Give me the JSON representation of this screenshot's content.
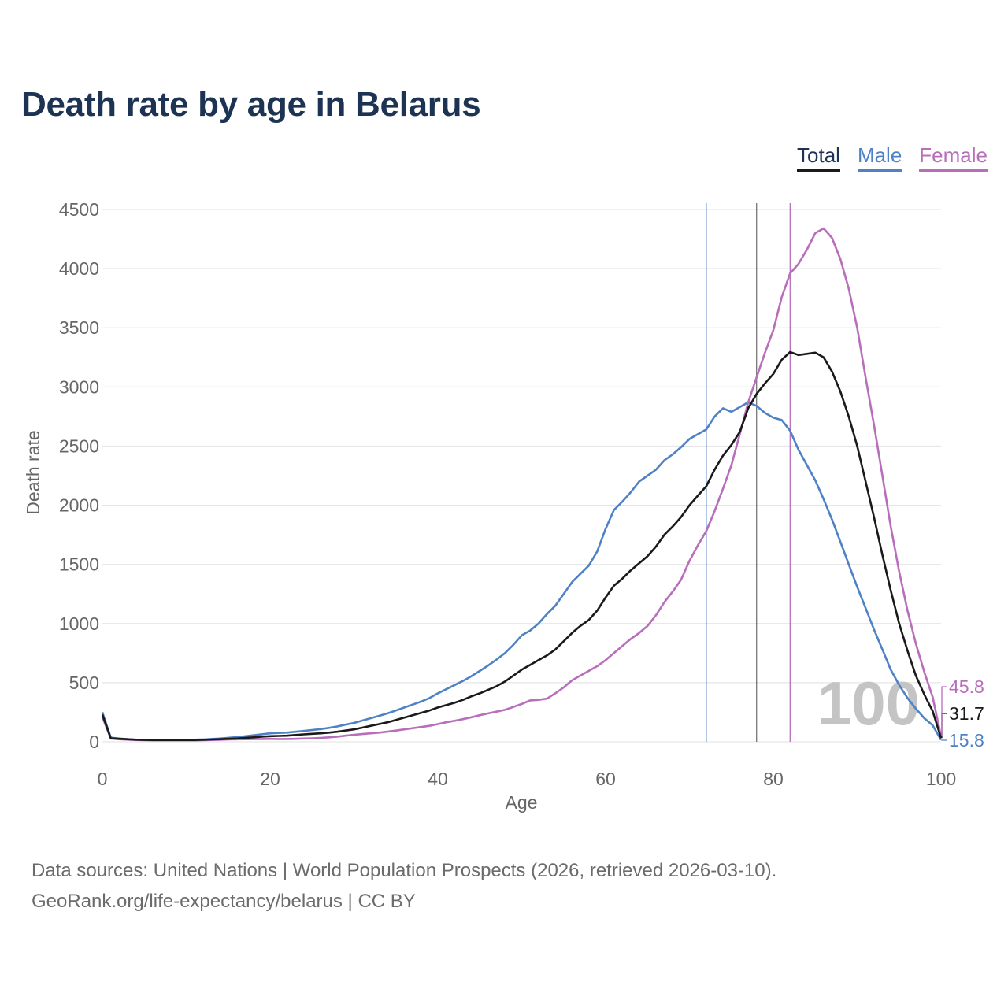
{
  "chart_data": {
    "type": "line",
    "title": "Death rate by age in Belarus",
    "xlabel": "Age",
    "ylabel": "Death rate",
    "xlim": [
      0,
      100
    ],
    "ylim": [
      0,
      4500
    ],
    "xticks": [
      0,
      20,
      40,
      60,
      80,
      100
    ],
    "yticks": [
      0,
      500,
      1000,
      1500,
      2000,
      2500,
      3000,
      3500,
      4000,
      4500
    ],
    "grid": true,
    "legend_position": "top-right",
    "watermark": "100",
    "series": [
      {
        "key": "total",
        "name": "Total",
        "color": "#1a1a1a",
        "end_label": "31.7",
        "reference_age": 78,
        "points": [
          [
            0,
            230
          ],
          [
            1,
            30
          ],
          [
            2,
            25
          ],
          [
            3,
            22
          ],
          [
            4,
            18
          ],
          [
            5,
            16
          ],
          [
            6,
            15
          ],
          [
            7,
            15
          ],
          [
            8,
            15
          ],
          [
            9,
            15
          ],
          [
            10,
            15
          ],
          [
            11,
            15
          ],
          [
            12,
            17
          ],
          [
            13,
            20
          ],
          [
            14,
            22
          ],
          [
            15,
            25
          ],
          [
            16,
            28
          ],
          [
            17,
            33
          ],
          [
            18,
            38
          ],
          [
            19,
            43
          ],
          [
            20,
            48
          ],
          [
            21,
            50
          ],
          [
            22,
            52
          ],
          [
            23,
            58
          ],
          [
            24,
            63
          ],
          [
            25,
            68
          ],
          [
            26,
            72
          ],
          [
            27,
            78
          ],
          [
            28,
            85
          ],
          [
            29,
            95
          ],
          [
            30,
            105
          ],
          [
            31,
            120
          ],
          [
            32,
            135
          ],
          [
            33,
            150
          ],
          [
            34,
            165
          ],
          [
            35,
            185
          ],
          [
            36,
            205
          ],
          [
            37,
            225
          ],
          [
            38,
            245
          ],
          [
            39,
            265
          ],
          [
            40,
            290
          ],
          [
            41,
            310
          ],
          [
            42,
            330
          ],
          [
            43,
            355
          ],
          [
            44,
            385
          ],
          [
            45,
            410
          ],
          [
            46,
            440
          ],
          [
            47,
            470
          ],
          [
            48,
            510
          ],
          [
            49,
            560
          ],
          [
            50,
            610
          ],
          [
            51,
            650
          ],
          [
            52,
            690
          ],
          [
            53,
            730
          ],
          [
            54,
            780
          ],
          [
            55,
            850
          ],
          [
            56,
            920
          ],
          [
            57,
            980
          ],
          [
            58,
            1030
          ],
          [
            59,
            1110
          ],
          [
            60,
            1220
          ],
          [
            61,
            1320
          ],
          [
            62,
            1380
          ],
          [
            63,
            1450
          ],
          [
            64,
            1510
          ],
          [
            65,
            1570
          ],
          [
            66,
            1650
          ],
          [
            67,
            1750
          ],
          [
            68,
            1820
          ],
          [
            69,
            1900
          ],
          [
            70,
            2000
          ],
          [
            71,
            2080
          ],
          [
            72,
            2160
          ],
          [
            73,
            2300
          ],
          [
            74,
            2420
          ],
          [
            75,
            2510
          ],
          [
            76,
            2620
          ],
          [
            77,
            2820
          ],
          [
            78,
            2940
          ],
          [
            79,
            3030
          ],
          [
            80,
            3110
          ],
          [
            81,
            3230
          ],
          [
            82,
            3295
          ],
          [
            83,
            3270
          ],
          [
            84,
            3280
          ],
          [
            85,
            3290
          ],
          [
            86,
            3250
          ],
          [
            87,
            3130
          ],
          [
            88,
            2960
          ],
          [
            89,
            2750
          ],
          [
            90,
            2500
          ],
          [
            91,
            2200
          ],
          [
            92,
            1900
          ],
          [
            93,
            1580
          ],
          [
            94,
            1280
          ],
          [
            95,
            1000
          ],
          [
            96,
            770
          ],
          [
            97,
            560
          ],
          [
            98,
            400
          ],
          [
            99,
            260
          ],
          [
            100,
            31.7
          ]
        ]
      },
      {
        "key": "male",
        "name": "Male",
        "color": "#4f81c5",
        "end_label": "15.8",
        "reference_age": 72,
        "points": [
          [
            0,
            250
          ],
          [
            1,
            35
          ],
          [
            2,
            28
          ],
          [
            3,
            22
          ],
          [
            4,
            18
          ],
          [
            5,
            16
          ],
          [
            6,
            15
          ],
          [
            7,
            16
          ],
          [
            8,
            17
          ],
          [
            9,
            18
          ],
          [
            10,
            18
          ],
          [
            11,
            18
          ],
          [
            12,
            20
          ],
          [
            13,
            24
          ],
          [
            14,
            28
          ],
          [
            15,
            34
          ],
          [
            16,
            40
          ],
          [
            17,
            47
          ],
          [
            18,
            55
          ],
          [
            19,
            64
          ],
          [
            20,
            72
          ],
          [
            21,
            75
          ],
          [
            22,
            78
          ],
          [
            23,
            85
          ],
          [
            24,
            92
          ],
          [
            25,
            100
          ],
          [
            26,
            108
          ],
          [
            27,
            118
          ],
          [
            28,
            130
          ],
          [
            29,
            145
          ],
          [
            30,
            160
          ],
          [
            31,
            180
          ],
          [
            32,
            200
          ],
          [
            33,
            220
          ],
          [
            34,
            240
          ],
          [
            35,
            265
          ],
          [
            36,
            290
          ],
          [
            37,
            315
          ],
          [
            38,
            340
          ],
          [
            39,
            370
          ],
          [
            40,
            410
          ],
          [
            41,
            445
          ],
          [
            42,
            480
          ],
          [
            43,
            515
          ],
          [
            44,
            555
          ],
          [
            45,
            600
          ],
          [
            46,
            645
          ],
          [
            47,
            695
          ],
          [
            48,
            750
          ],
          [
            49,
            820
          ],
          [
            50,
            900
          ],
          [
            51,
            940
          ],
          [
            52,
            1000
          ],
          [
            53,
            1080
          ],
          [
            54,
            1150
          ],
          [
            55,
            1250
          ],
          [
            56,
            1350
          ],
          [
            57,
            1420
          ],
          [
            58,
            1490
          ],
          [
            59,
            1610
          ],
          [
            60,
            1800
          ],
          [
            61,
            1960
          ],
          [
            62,
            2030
          ],
          [
            63,
            2110
          ],
          [
            64,
            2200
          ],
          [
            65,
            2250
          ],
          [
            66,
            2300
          ],
          [
            67,
            2380
          ],
          [
            68,
            2430
          ],
          [
            69,
            2490
          ],
          [
            70,
            2560
          ],
          [
            71,
            2600
          ],
          [
            72,
            2640
          ],
          [
            73,
            2750
          ],
          [
            74,
            2820
          ],
          [
            75,
            2790
          ],
          [
            76,
            2830
          ],
          [
            77,
            2870
          ],
          [
            78,
            2840
          ],
          [
            79,
            2780
          ],
          [
            80,
            2740
          ],
          [
            81,
            2720
          ],
          [
            82,
            2630
          ],
          [
            83,
            2470
          ],
          [
            84,
            2340
          ],
          [
            85,
            2210
          ],
          [
            86,
            2050
          ],
          [
            87,
            1880
          ],
          [
            88,
            1690
          ],
          [
            89,
            1500
          ],
          [
            90,
            1310
          ],
          [
            91,
            1130
          ],
          [
            92,
            950
          ],
          [
            93,
            780
          ],
          [
            94,
            610
          ],
          [
            95,
            480
          ],
          [
            96,
            370
          ],
          [
            97,
            280
          ],
          [
            98,
            200
          ],
          [
            99,
            140
          ],
          [
            100,
            15.8
          ]
        ]
      },
      {
        "key": "female",
        "name": "Female",
        "color": "#b86ebb",
        "end_label": "45.8",
        "reference_age": 82,
        "points": [
          [
            0,
            210
          ],
          [
            1,
            28
          ],
          [
            2,
            22
          ],
          [
            3,
            18
          ],
          [
            4,
            15
          ],
          [
            5,
            13
          ],
          [
            6,
            12
          ],
          [
            7,
            12
          ],
          [
            8,
            12
          ],
          [
            9,
            12
          ],
          [
            10,
            12
          ],
          [
            11,
            12
          ],
          [
            12,
            13
          ],
          [
            13,
            15
          ],
          [
            14,
            17
          ],
          [
            15,
            20
          ],
          [
            16,
            21
          ],
          [
            17,
            22
          ],
          [
            18,
            23
          ],
          [
            19,
            24
          ],
          [
            20,
            25
          ],
          [
            21,
            24
          ],
          [
            22,
            24
          ],
          [
            23,
            25
          ],
          [
            24,
            28
          ],
          [
            25,
            30
          ],
          [
            26,
            33
          ],
          [
            27,
            38
          ],
          [
            28,
            44
          ],
          [
            29,
            52
          ],
          [
            30,
            60
          ],
          [
            31,
            66
          ],
          [
            32,
            72
          ],
          [
            33,
            78
          ],
          [
            34,
            86
          ],
          [
            35,
            95
          ],
          [
            36,
            105
          ],
          [
            37,
            115
          ],
          [
            38,
            125
          ],
          [
            39,
            135
          ],
          [
            40,
            150
          ],
          [
            41,
            165
          ],
          [
            42,
            178
          ],
          [
            43,
            192
          ],
          [
            44,
            208
          ],
          [
            45,
            225
          ],
          [
            46,
            240
          ],
          [
            47,
            255
          ],
          [
            48,
            270
          ],
          [
            49,
            295
          ],
          [
            50,
            320
          ],
          [
            51,
            350
          ],
          [
            52,
            355
          ],
          [
            53,
            365
          ],
          [
            54,
            410
          ],
          [
            55,
            460
          ],
          [
            56,
            520
          ],
          [
            57,
            560
          ],
          [
            58,
            600
          ],
          [
            59,
            640
          ],
          [
            60,
            690
          ],
          [
            61,
            750
          ],
          [
            62,
            810
          ],
          [
            63,
            870
          ],
          [
            64,
            920
          ],
          [
            65,
            980
          ],
          [
            66,
            1070
          ],
          [
            67,
            1180
          ],
          [
            68,
            1270
          ],
          [
            69,
            1370
          ],
          [
            70,
            1530
          ],
          [
            71,
            1660
          ],
          [
            72,
            1780
          ],
          [
            73,
            1950
          ],
          [
            74,
            2140
          ],
          [
            75,
            2340
          ],
          [
            76,
            2600
          ],
          [
            77,
            2870
          ],
          [
            78,
            3080
          ],
          [
            79,
            3290
          ],
          [
            80,
            3480
          ],
          [
            81,
            3760
          ],
          [
            82,
            3960
          ],
          [
            83,
            4040
          ],
          [
            84,
            4160
          ],
          [
            85,
            4300
          ],
          [
            86,
            4340
          ],
          [
            87,
            4260
          ],
          [
            88,
            4080
          ],
          [
            89,
            3830
          ],
          [
            90,
            3500
          ],
          [
            91,
            3080
          ],
          [
            92,
            2680
          ],
          [
            93,
            2250
          ],
          [
            94,
            1820
          ],
          [
            95,
            1440
          ],
          [
            96,
            1110
          ],
          [
            97,
            830
          ],
          [
            98,
            590
          ],
          [
            99,
            380
          ],
          [
            100,
            45.8
          ]
        ]
      }
    ]
  },
  "source": {
    "line1": "Data sources: United Nations | World Population Prospects (2026, retrieved 2026-03-10).",
    "line2": "GeoRank.org/life-expectancy/belarus | CC BY"
  }
}
